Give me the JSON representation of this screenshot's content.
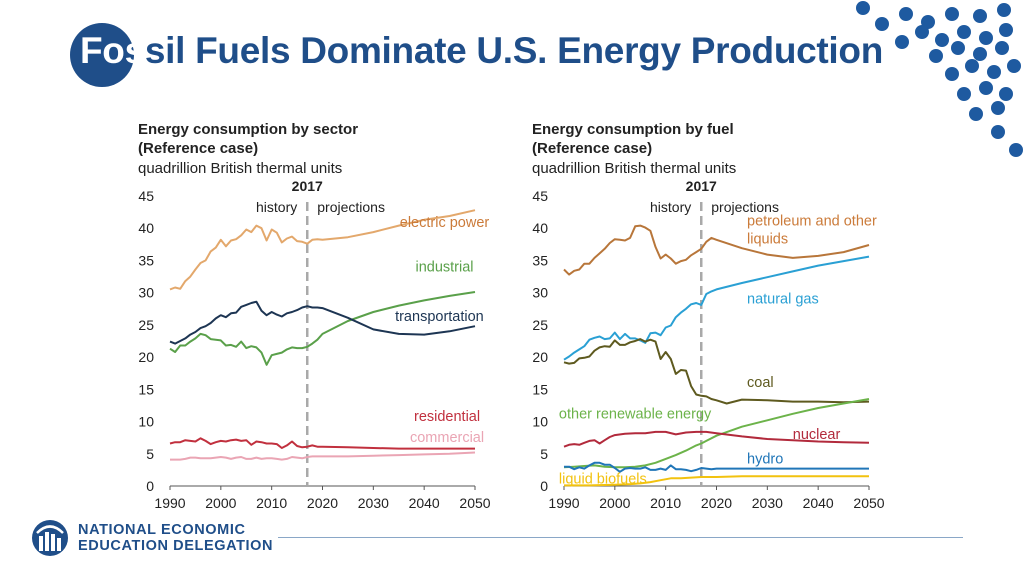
{
  "slide": {
    "title_highlight": "Fos",
    "title_rest": "sil Fuels Dominate U.S. Energy Production",
    "footer_line1": "NATIONAL ECONOMIC",
    "footer_line2": "EDUCATION DELEGATION"
  },
  "colors": {
    "brand_blue": "#1f4e89",
    "dot_blue": "#1e5aa0"
  },
  "chart_data": [
    {
      "type": "line",
      "title_line1": "Energy consumption by sector",
      "title_line2": "(Reference case)",
      "units": "quadrillion British thermal units",
      "xlim": [
        1990,
        2050
      ],
      "ylim": [
        0,
        45
      ],
      "xticks": [
        1990,
        2000,
        2010,
        2020,
        2030,
        2040,
        2050
      ],
      "yticks": [
        0,
        5,
        10,
        15,
        20,
        25,
        30,
        35,
        40,
        45
      ],
      "divider_year": 2017,
      "divider_label": "2017",
      "history_label": "history",
      "projections_label": "projections",
      "series": [
        {
          "name": "electric power",
          "color": "#e3a86c",
          "x": [
            1990,
            1991,
            1992,
            1993,
            1994,
            1995,
            1996,
            1997,
            1998,
            1999,
            2000,
            2001,
            2002,
            2003,
            2004,
            2005,
            2006,
            2007,
            2008,
            2009,
            2010,
            2011,
            2012,
            2013,
            2014,
            2015,
            2016,
            2017,
            2018,
            2019,
            2020,
            2025,
            2030,
            2035,
            2040,
            2045,
            2050
          ],
          "values": [
            30.5,
            30.8,
            30.6,
            31.8,
            32.5,
            33.6,
            34.6,
            35,
            36.4,
            37,
            38.2,
            37.2,
            38.1,
            38.3,
            38.9,
            39.8,
            39.4,
            40.4,
            40,
            38.1,
            39.8,
            39.3,
            37.8,
            38.4,
            38.7,
            38,
            37.9,
            37.6,
            38.2,
            38.3,
            38.2,
            38.6,
            39.4,
            40.4,
            41.3,
            41.9,
            42.8
          ]
        },
        {
          "name": "industrial",
          "color": "#5aa04a",
          "x": [
            1990,
            1991,
            1992,
            1993,
            1994,
            1995,
            1996,
            1997,
            1998,
            1999,
            2000,
            2001,
            2002,
            2003,
            2004,
            2005,
            2006,
            2007,
            2008,
            2009,
            2010,
            2011,
            2012,
            2013,
            2014,
            2015,
            2016,
            2017,
            2018,
            2019,
            2020,
            2025,
            2030,
            2035,
            2040,
            2045,
            2050
          ],
          "values": [
            21.3,
            20.8,
            21.8,
            21.8,
            22.4,
            22.9,
            23.6,
            23.4,
            22.8,
            22.7,
            22.6,
            21.8,
            21.9,
            21.6,
            22.4,
            21.4,
            21.7,
            21.5,
            20.7,
            18.8,
            20.3,
            20.5,
            20.7,
            21.2,
            21.5,
            21.4,
            21.4,
            21.6,
            22.1,
            22.7,
            23.6,
            25.6,
            27,
            28,
            28.8,
            29.5,
            30.1
          ]
        },
        {
          "name": "transportation",
          "color": "#1d3553",
          "x": [
            1990,
            1991,
            1992,
            1993,
            1994,
            1995,
            1996,
            1997,
            1998,
            1999,
            2000,
            2001,
            2002,
            2003,
            2004,
            2005,
            2006,
            2007,
            2008,
            2009,
            2010,
            2011,
            2012,
            2013,
            2014,
            2015,
            2016,
            2017,
            2018,
            2019,
            2020,
            2025,
            2030,
            2035,
            2040,
            2045,
            2050
          ],
          "values": [
            22.4,
            22.1,
            22.5,
            22.9,
            23.5,
            23.9,
            24.5,
            24.8,
            25.3,
            26,
            26.5,
            26.2,
            26.8,
            26.9,
            27.8,
            28.1,
            28.4,
            28.6,
            27.2,
            26.5,
            27,
            26.6,
            26.3,
            26.8,
            27,
            27.3,
            27.7,
            27.9,
            27.7,
            27.7,
            27.6,
            26.1,
            24.3,
            23.6,
            23.5,
            24,
            24.8
          ]
        },
        {
          "name": "residential",
          "color": "#c1303e",
          "x": [
            1990,
            1991,
            1992,
            1993,
            1994,
            1995,
            1996,
            1997,
            1998,
            1999,
            2000,
            2001,
            2002,
            2003,
            2004,
            2005,
            2006,
            2007,
            2008,
            2009,
            2010,
            2011,
            2012,
            2013,
            2014,
            2015,
            2016,
            2017,
            2018,
            2019,
            2020,
            2025,
            2030,
            2035,
            2040,
            2045,
            2050
          ],
          "values": [
            6.6,
            6.8,
            6.8,
            7.1,
            7,
            6.9,
            7.4,
            7,
            6.5,
            6.8,
            7,
            6.9,
            7.1,
            7.2,
            7,
            7.1,
            6.4,
            6.9,
            6.8,
            6.6,
            6.6,
            6.5,
            5.9,
            6.3,
            6.9,
            6.2,
            6,
            6.1,
            6.3,
            6.1,
            6.1,
            6,
            5.9,
            5.8,
            5.8,
            5.8,
            5.8
          ]
        },
        {
          "name": "commercial",
          "color": "#eaa5b4",
          "x": [
            1990,
            1991,
            1992,
            1993,
            1994,
            1995,
            1996,
            1997,
            1998,
            1999,
            2000,
            2001,
            2002,
            2003,
            2004,
            2005,
            2006,
            2007,
            2008,
            2009,
            2010,
            2011,
            2012,
            2013,
            2014,
            2015,
            2016,
            2017,
            2018,
            2019,
            2020,
            2025,
            2030,
            2035,
            2040,
            2045,
            2050
          ],
          "values": [
            4.1,
            4.1,
            4.1,
            4.2,
            4.4,
            4.4,
            4.3,
            4.3,
            4.3,
            4.4,
            4.5,
            4.4,
            4.2,
            4.4,
            4.5,
            4.2,
            4.2,
            4.4,
            4.2,
            4.3,
            4.3,
            4.2,
            4.1,
            4.2,
            4.5,
            4.4,
            4.3,
            4.5,
            4.6,
            4.6,
            4.6,
            4.6,
            4.7,
            4.8,
            4.9,
            5,
            5.2
          ]
        }
      ],
      "annotations": [
        {
          "text": "electric power",
          "color": "#cb7b3a",
          "x": 2044,
          "y": 40.2,
          "anchor": "middle"
        },
        {
          "text": "industrial",
          "color": "#5aa04a",
          "x": 2044,
          "y": 33.3,
          "anchor": "middle"
        },
        {
          "text": "transportation",
          "color": "#1d3553",
          "x": 2043,
          "y": 25.6,
          "anchor": "middle"
        },
        {
          "text": "residential",
          "color": "#c1303e",
          "x": 2044.5,
          "y": 10.1,
          "anchor": "middle"
        },
        {
          "text": "commercial",
          "color": "#eaa5b4",
          "x": 2044.5,
          "y": 6.8,
          "anchor": "middle"
        }
      ]
    },
    {
      "type": "line",
      "title_line1": "Energy consumption by fuel",
      "title_line2": "(Reference case)",
      "units": "quadrillion British thermal units",
      "xlim": [
        1990,
        2050
      ],
      "ylim": [
        0,
        45
      ],
      "xticks": [
        1990,
        2000,
        2010,
        2020,
        2030,
        2040,
        2050
      ],
      "yticks": [
        0,
        5,
        10,
        15,
        20,
        25,
        30,
        35,
        40,
        45
      ],
      "divider_year": 2017,
      "divider_label": "2017",
      "history_label": "history",
      "projections_label": "projections",
      "series": [
        {
          "name": "petroleum and other liquids",
          "color": "#b8763a",
          "x": [
            1990,
            1991,
            1992,
            1993,
            1994,
            1995,
            1996,
            1997,
            1998,
            1999,
            2000,
            2001,
            2002,
            2003,
            2004,
            2005,
            2006,
            2007,
            2008,
            2009,
            2010,
            2011,
            2012,
            2013,
            2014,
            2015,
            2016,
            2017,
            2018,
            2019,
            2020,
            2025,
            2030,
            2035,
            2040,
            2045,
            2050
          ],
          "values": [
            33.6,
            32.8,
            33.4,
            33.6,
            34.5,
            34.5,
            35.4,
            36.1,
            36.8,
            37.7,
            38.3,
            38.2,
            38.1,
            38.5,
            40.3,
            40.4,
            40.1,
            39.6,
            37.1,
            35.3,
            35.9,
            35.3,
            34.5,
            34.9,
            35.1,
            35.8,
            36.3,
            36.8,
            37.9,
            38.5,
            38.2,
            36.9,
            35.9,
            35.4,
            35.7,
            36.3,
            37.4
          ]
        },
        {
          "name": "natural gas",
          "color": "#2aa0d4",
          "x": [
            1990,
            1991,
            1992,
            1993,
            1994,
            1995,
            1996,
            1997,
            1998,
            1999,
            2000,
            2001,
            2002,
            2003,
            2004,
            2005,
            2006,
            2007,
            2008,
            2009,
            2010,
            2011,
            2012,
            2013,
            2014,
            2015,
            2016,
            2017,
            2018,
            2019,
            2020,
            2025,
            2030,
            2035,
            2040,
            2045,
            2050
          ],
          "values": [
            19.6,
            20.1,
            20.7,
            21.2,
            21.7,
            22.7,
            23,
            23.2,
            22.8,
            22.9,
            23.8,
            22.8,
            23.6,
            22.9,
            22.9,
            22.6,
            22.2,
            23.7,
            23.8,
            23.4,
            24.6,
            24.9,
            26.2,
            26.9,
            27.5,
            28.2,
            28.4,
            28.1,
            29.8,
            30.2,
            30.5,
            31.5,
            32.4,
            33.3,
            34.2,
            34.9,
            35.6
          ]
        },
        {
          "name": "coal",
          "color": "#5e5a1f",
          "x": [
            1990,
            1991,
            1992,
            1993,
            1994,
            1995,
            1996,
            1997,
            1998,
            1999,
            2000,
            2001,
            2002,
            2003,
            2004,
            2005,
            2006,
            2007,
            2008,
            2009,
            2010,
            2011,
            2012,
            2013,
            2014,
            2015,
            2016,
            2017,
            2018,
            2019,
            2020,
            2022,
            2025,
            2030,
            2035,
            2040,
            2045,
            2050
          ],
          "values": [
            19.2,
            19,
            19.1,
            19.8,
            19.9,
            20.1,
            21,
            21.5,
            21.7,
            21.6,
            22.6,
            21.9,
            21.9,
            22.3,
            22.5,
            22.8,
            22.4,
            22.7,
            22.4,
            19.7,
            20.8,
            19.7,
            17.4,
            18,
            17.9,
            15.5,
            14.2,
            14,
            13.9,
            13.5,
            13.3,
            12.8,
            13.4,
            13.3,
            13.1,
            13.1,
            13,
            13.1
          ]
        },
        {
          "name": "other renewable energy",
          "color": "#6cb34a",
          "x": [
            1990,
            1992,
            1994,
            1996,
            1998,
            2000,
            2002,
            2004,
            2006,
            2008,
            2010,
            2012,
            2014,
            2016,
            2017,
            2018,
            2020,
            2025,
            2030,
            2035,
            2040,
            2045,
            2050
          ],
          "values": [
            2.9,
            3,
            3.1,
            3.2,
            3,
            2.9,
            2.9,
            3,
            3.2,
            3.6,
            4.2,
            4.8,
            5.5,
            6.3,
            6.6,
            7,
            7.8,
            9.2,
            10.2,
            11.2,
            12.1,
            12.8,
            13.5
          ]
        },
        {
          "name": "nuclear",
          "color": "#b22a3c",
          "x": [
            1990,
            1991,
            1992,
            1993,
            1994,
            1995,
            1996,
            1997,
            1998,
            1999,
            2000,
            2002,
            2004,
            2006,
            2008,
            2010,
            2012,
            2014,
            2016,
            2017,
            2018,
            2020,
            2025,
            2030,
            2035,
            2040,
            2045,
            2050
          ],
          "values": [
            6.1,
            6.4,
            6.5,
            6.4,
            6.7,
            7,
            7.1,
            6.6,
            7.1,
            7.6,
            7.9,
            8.1,
            8.2,
            8.2,
            8.4,
            8.4,
            8,
            8.3,
            8.4,
            8.4,
            8.4,
            8.2,
            7.7,
            7.3,
            7.1,
            6.9,
            6.8,
            6.7
          ]
        },
        {
          "name": "hydro",
          "color": "#2076b8",
          "x": [
            1990,
            1991,
            1992,
            1993,
            1994,
            1995,
            1996,
            1997,
            1998,
            1999,
            2000,
            2001,
            2002,
            2003,
            2004,
            2005,
            2006,
            2007,
            2008,
            2009,
            2010,
            2011,
            2012,
            2013,
            2014,
            2015,
            2016,
            2017,
            2018,
            2019,
            2020,
            2025,
            2030,
            2035,
            2040,
            2045,
            2050
          ],
          "values": [
            3,
            3,
            2.6,
            2.9,
            2.7,
            3.2,
            3.6,
            3.6,
            3.3,
            3.3,
            2.8,
            2.2,
            2.7,
            2.8,
            2.7,
            2.7,
            2.9,
            2.5,
            2.5,
            2.7,
            2.5,
            3.2,
            2.6,
            2.6,
            2.5,
            2.3,
            2.5,
            2.8,
            2.7,
            2.6,
            2.7,
            2.7,
            2.7,
            2.7,
            2.7,
            2.7,
            2.7
          ]
        },
        {
          "name": "liquid biofuels",
          "color": "#f2c20f",
          "x": [
            1990,
            1995,
            2000,
            2003,
            2005,
            2007,
            2009,
            2011,
            2013,
            2015,
            2017,
            2020,
            2025,
            2030,
            2035,
            2040,
            2045,
            2050
          ],
          "values": [
            0.1,
            0.1,
            0.2,
            0.3,
            0.4,
            0.6,
            0.9,
            1.2,
            1.2,
            1.3,
            1.4,
            1.4,
            1.5,
            1.5,
            1.5,
            1.5,
            1.5,
            1.5
          ]
        }
      ],
      "annotations": [
        {
          "text": "petroleum and other",
          "color": "#cb7b3a",
          "x": 2026,
          "y": 40.4,
          "anchor": "start"
        },
        {
          "text": "liquids",
          "color": "#cb7b3a",
          "x": 2026,
          "y": 37.6,
          "anchor": "start"
        },
        {
          "text": "natural gas",
          "color": "#2aa0d4",
          "x": 2026,
          "y": 28.3,
          "anchor": "start"
        },
        {
          "text": "coal",
          "color": "#5e5a1f",
          "x": 2026,
          "y": 15.4,
          "anchor": "start"
        },
        {
          "text": "other renewable energy",
          "color": "#6cb34a",
          "x": 1989,
          "y": 10.5,
          "anchor": "start"
        },
        {
          "text": "nuclear",
          "color": "#b22a3c",
          "x": 2035,
          "y": 7.3,
          "anchor": "start"
        },
        {
          "text": "hydro",
          "color": "#2076b8",
          "x": 2026,
          "y": 3.5,
          "anchor": "start"
        },
        {
          "text": "liquid biofuels",
          "color": "#f2c20f",
          "x": 1989,
          "y": 0.4,
          "anchor": "start"
        }
      ]
    }
  ]
}
